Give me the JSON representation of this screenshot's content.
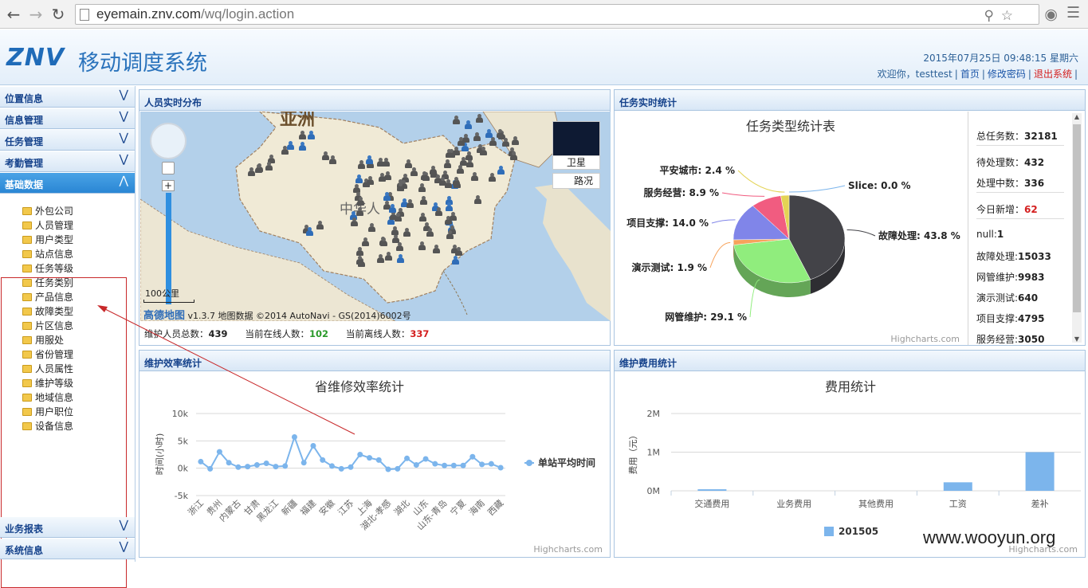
{
  "browser": {
    "url_host": "eyemain.znv.com",
    "url_path": "/wq/login.action"
  },
  "header": {
    "logo": "ZNV",
    "title": "移动调度系统",
    "datetime": "2015年07月25日 09:48:15 星期六",
    "welcome": "欢迎你，testtest",
    "home": "首页",
    "change_password": "修改密码",
    "logout": "退出系统"
  },
  "sidebar": {
    "menus": [
      "位置信息",
      "信息管理",
      "任务管理",
      "考勤管理",
      "基础数据"
    ],
    "bottom_menus": [
      "业务报表",
      "系统信息"
    ],
    "items": [
      "外包公司",
      "人员管理",
      "用户类型",
      "站点信息",
      "任务等级",
      "任务类别",
      "产品信息",
      "故障类型",
      "片区信息",
      "用服处",
      "省份管理",
      "人员属性",
      "维护等级",
      "地域信息",
      "用户职位",
      "设备信息"
    ]
  },
  "panels": {
    "map": {
      "title": "人员实时分布",
      "asia": "亚洲",
      "country": "中华人",
      "scale": "100公里",
      "copy_brand": "高德地图",
      "copy_text": "v1.3.7 地图数据 ©2014 AutoNavi - GS(2014)6002号",
      "satellite": "卫星",
      "traffic": "路况",
      "stats": {
        "total_label": "维护人员总数：",
        "total": "439",
        "online_label": "当前在线人数：",
        "online": "102",
        "offline_label": "当前离线人数：",
        "offline": "337"
      }
    },
    "task": {
      "title": "任务实时统计",
      "stats": [
        {
          "label": "总任务数：",
          "value": "32181"
        },
        {
          "label": "待处理数：",
          "value": "432"
        },
        {
          "label": "处理中数：",
          "value": "336"
        },
        {
          "label": "今日新增：",
          "value": "62"
        },
        {
          "label": "null:",
          "value": "1"
        },
        {
          "label": "故障处理:",
          "value": "15033"
        },
        {
          "label": "网管维护:",
          "value": "9983"
        },
        {
          "label": "演示测试:",
          "value": "640"
        },
        {
          "label": "项目支撑:",
          "value": "4795"
        },
        {
          "label": "服务经营:",
          "value": "3050"
        }
      ]
    },
    "efficiency": {
      "title": "维护效率统计"
    },
    "cost": {
      "title": "维护费用统计"
    }
  },
  "credit": "Highcharts.com",
  "watermark": "www.wooyun.org",
  "chart_data": [
    {
      "type": "pie",
      "title": "任务类型统计表",
      "labels": [
        "故障处理",
        "网管维护",
        "演示测试",
        "项目支撑",
        "服务经营",
        "平安城市",
        "Slice"
      ],
      "values": [
        43.8,
        29.1,
        1.9,
        14.0,
        8.9,
        2.4,
        0.0
      ],
      "value_labels": [
        "43.8 %",
        "29.1 %",
        "1.9 %",
        "14.0 %",
        "8.9 %",
        "2.4 %",
        "0.0 %"
      ],
      "colors": [
        "#434348",
        "#90ed7d",
        "#f7a35c",
        "#8085e9",
        "#f15c80",
        "#e4d354",
        "#7cb5ec"
      ]
    },
    {
      "type": "line",
      "title": "省维修效率统计",
      "ylabel": "时间(小时)",
      "ylim": [
        -5000,
        10000
      ],
      "yticks": [
        "10k",
        "5k",
        "0k",
        "-5k"
      ],
      "categories": [
        "浙江",
        "",
        "贵州",
        "",
        "内蒙古",
        "",
        "甘肃",
        "",
        "黑龙江",
        "",
        "新疆",
        "",
        "福建",
        "",
        "安徽",
        "",
        "江苏",
        "",
        "上海",
        "",
        "湖北-孝感",
        "",
        "湖北",
        "",
        "山东",
        "",
        "山东-青岛",
        "",
        "宁夏",
        "",
        "海南",
        "",
        "西藏"
      ],
      "series": [
        {
          "name": "单站平均时间",
          "color": "#7cb5ec",
          "values": [
            1200,
            -100,
            3000,
            1000,
            200,
            300,
            600,
            900,
            300,
            400,
            5700,
            1000,
            4100,
            1500,
            400,
            -100,
            200,
            2500,
            1900,
            1500,
            -200,
            -100,
            1800,
            600,
            1700,
            800,
            500,
            500,
            500,
            2100,
            700,
            800,
            100
          ]
        }
      ]
    },
    {
      "type": "bar",
      "title": "费用统计",
      "ylabel": "费用（元）",
      "ylim": [
        0,
        2000000
      ],
      "yticks": [
        "2M",
        "1M",
        "0M"
      ],
      "categories": [
        "交通费用",
        "业务费用",
        "其他费用",
        "工资",
        "差补"
      ],
      "series": [
        {
          "name": "201505",
          "color": "#7cb5ec",
          "values": [
            40000,
            0,
            0,
            220000,
            1000000
          ]
        }
      ]
    }
  ]
}
